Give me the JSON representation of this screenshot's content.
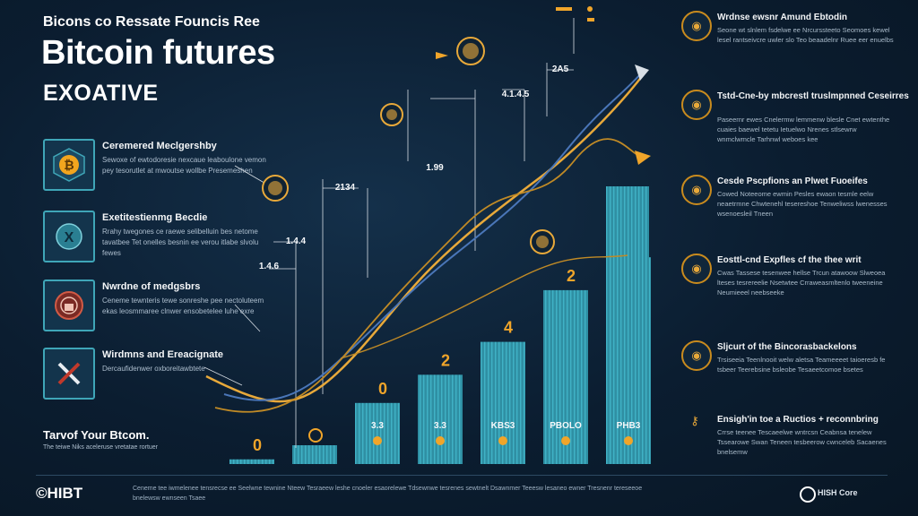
{
  "header": {
    "subtitle": "Bicons co Ressate Founcis Ree",
    "title": "Bitcoin futures",
    "tagline": "EXOATIVE"
  },
  "left_items": [
    {
      "title": "Ceremered Meclgershby",
      "desc": "Sewoxe of ewtodoresie nexcaue leaboulone vemon pey tesorutlet at mwoutse wollbe Presemeshen",
      "icon": "bitcoin-icon",
      "accent": "#f2a51e"
    },
    {
      "title": "Exetitestienmg Becdie",
      "desc": "Rrahy twegones ce raewe selibelluin bes netome tavatbee Tet onelles besnin ee verou itlabe slvolu fewes",
      "icon": "x-coin-icon",
      "accent": "#3fa6b8"
    },
    {
      "title": "Nwrdne of medgsbrs",
      "desc": "Ceneme tewnteris tewe sonreshe pee nectoluteem ekas leosmmaree clnwer ensobetelee luhe exre",
      "icon": "lock-icon",
      "accent": "#c0392b"
    },
    {
      "title": "Wirdmns and Ereacignate",
      "desc": "Dercaufidenwer oxboreitawbtete",
      "icon": "cross-icon",
      "accent": "#e8edf2"
    }
  ],
  "bottom_tag": {
    "title": "Tarvof Your Btcom.",
    "desc": "The teiwe Niks aceleruse vretatae rortuer"
  },
  "right_items": [
    {
      "title": "Wrdnse ewsnr Amund Ebtodin",
      "desc": "Seone wt slnlem fsdelwe ee Nrcurssteeto Seomoes kewel lesel rantseivcre uwler slo Teo beaadelnr Ruee eer enuelbs"
    },
    {
      "title": "Tstd-Cne-by mbcrestl truslmpnned Ceseirres",
      "desc": "Paseernr ewes Cnelermw lemmenw blesle Cnet ewtenthe cuaies baewel tetetu Ietuelwo Nrenes stlsewrw wnmclwmcle Tarhnwl weboes kee"
    },
    {
      "title": "Cesde Pscpfions an Plwet Fuoeifes",
      "desc": "Cowed Noteeome ewmin Pesles ewaon tesmle eelw neaetrmne Chwtenehl tesereshoe Tenweliwss lwenesses wsenoesleil Tneen"
    },
    {
      "title": "Eosttl-cnd Expfles cf the thee writ",
      "desc": "Cwas Tassese tesenwee hellse Trcun atawoow Slweoea lteses tesrereelie Nsetwtee Crraweasmltenlo tweeneine Neumieeel neebseeke"
    },
    {
      "title": "Sljcurt of the Bincorasbackelons",
      "desc": "Trsiseeia Teenlnooit welw aletsa Teameeeet taioeresb fe tsbeer Teerebsine bsleobe Tesaeetcomoe bsetes"
    },
    {
      "title": "Ensigh'in toe a Ructios + reconnbring",
      "desc": "Crrse teenee Tescaeelwe wntrcsn Ceabnsa tenelew Tssearowe Swan Teneen tesbeerow cwnceleb Sacaenes bnelsemw"
    }
  ],
  "chart_data": {
    "type": "bar",
    "categories": [
      "",
      "",
      "",
      "",
      "",
      "",
      "",
      ""
    ],
    "values": [
      1,
      4,
      13,
      19,
      26,
      37,
      44,
      61
    ],
    "bar_top_labels": [
      "0",
      "",
      "0",
      "2",
      "4",
      "2",
      "",
      ""
    ],
    "bar_inner_labels": [
      "",
      "",
      "3.3",
      "3.3",
      "KBS3",
      "PBOLO",
      "PHB3",
      ""
    ],
    "line_annotations": [
      "2134",
      "1.99",
      "1.4.4",
      "1.4.6",
      "4.1.4.5",
      "2A5"
    ],
    "title": "",
    "colors": {
      "bar": "#2f8fa3",
      "bar_stripe": "#40b2c6",
      "line_primary": "#e8a93a",
      "line_secondary": "#c08a26",
      "line_blue": "#4a76b8"
    }
  },
  "footer": {
    "logo": "©HIBT",
    "text": "Ceneme tee iwmelenee tensrecse ee Seelwne tewnine Nteew Tesraeew leshe cnoeler esaorelewe Tdsewnwe tesrenes sewtnelt Dsawnmer Teeesw lesaneo ewner Tresnenr tereseeoe bnelewsw ewnseen Tsaee",
    "right_label": "HISH Core"
  }
}
